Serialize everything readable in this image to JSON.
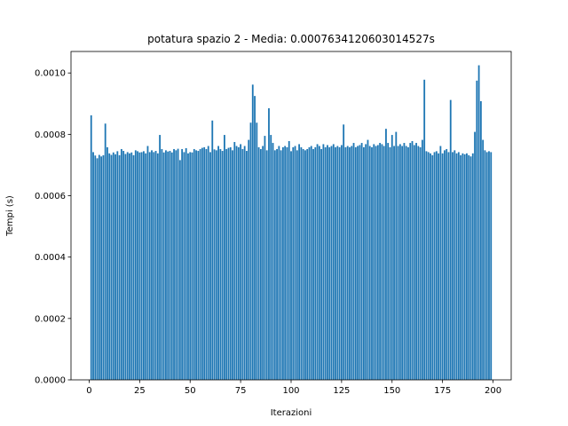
{
  "chart_data": {
    "type": "bar",
    "title": "potatura spazio 2 - Media: 0.0007634120603014527s",
    "xlabel": "Iterazioni",
    "ylabel": "Tempi (s)",
    "bar_color": "#1f77b4",
    "xlim": [
      -9,
      209
    ],
    "ylim": [
      0,
      0.00107
    ],
    "x_ticks": [
      0,
      25,
      50,
      75,
      100,
      125,
      150,
      175,
      200
    ],
    "x_tick_labels": [
      "0",
      "25",
      "50",
      "75",
      "100",
      "125",
      "150",
      "175",
      "200"
    ],
    "y_ticks": [
      0,
      0.0002,
      0.0004,
      0.0006,
      0.0008,
      0.001
    ],
    "y_tick_labels": [
      "0.0000",
      "0.0002",
      "0.0004",
      "0.0006",
      "0.0008",
      "0.0010"
    ],
    "grid": false,
    "x": [
      1,
      2,
      3,
      4,
      5,
      6,
      7,
      8,
      9,
      10,
      11,
      12,
      13,
      14,
      15,
      16,
      17,
      18,
      19,
      20,
      21,
      22,
      23,
      24,
      25,
      26,
      27,
      28,
      29,
      30,
      31,
      32,
      33,
      34,
      35,
      36,
      37,
      38,
      39,
      40,
      41,
      42,
      43,
      44,
      45,
      46,
      47,
      48,
      49,
      50,
      51,
      52,
      53,
      54,
      55,
      56,
      57,
      58,
      59,
      60,
      61,
      62,
      63,
      64,
      65,
      66,
      67,
      68,
      69,
      70,
      71,
      72,
      73,
      74,
      75,
      76,
      77,
      78,
      79,
      80,
      81,
      82,
      83,
      84,
      85,
      86,
      87,
      88,
      89,
      90,
      91,
      92,
      93,
      94,
      95,
      96,
      97,
      98,
      99,
      100,
      101,
      102,
      103,
      104,
      105,
      106,
      107,
      108,
      109,
      110,
      111,
      112,
      113,
      114,
      115,
      116,
      117,
      118,
      119,
      120,
      121,
      122,
      123,
      124,
      125,
      126,
      127,
      128,
      129,
      130,
      131,
      132,
      133,
      134,
      135,
      136,
      137,
      138,
      139,
      140,
      141,
      142,
      143,
      144,
      145,
      146,
      147,
      148,
      149,
      150,
      151,
      152,
      153,
      154,
      155,
      156,
      157,
      158,
      159,
      160,
      161,
      162,
      163,
      164,
      165,
      166,
      167,
      168,
      169,
      170,
      171,
      172,
      173,
      174,
      175,
      176,
      177,
      178,
      179,
      180,
      181,
      182,
      183,
      184,
      185,
      186,
      187,
      188,
      189,
      190,
      191,
      192,
      193,
      194,
      195,
      196,
      197,
      198,
      199
    ],
    "values": [
      0.000862,
      0.000742,
      0.000731,
      0.000722,
      0.000733,
      0.000728,
      0.000732,
      0.000835,
      0.000758,
      0.000738,
      0.000733,
      0.000741,
      0.000735,
      0.000745,
      0.000732,
      0.000752,
      0.000746,
      0.000736,
      0.000742,
      0.000738,
      0.000741,
      0.000732,
      0.000748,
      0.000745,
      0.000741,
      0.000742,
      0.000745,
      0.000738,
      0.000762,
      0.000742,
      0.000748,
      0.000742,
      0.000746,
      0.000738,
      0.000798,
      0.000752,
      0.000741,
      0.000748,
      0.000744,
      0.000746,
      0.000741,
      0.000752,
      0.000748,
      0.000753,
      0.000716,
      0.000752,
      0.000742,
      0.000755,
      0.000738,
      0.000742,
      0.000741,
      0.000752,
      0.000748,
      0.000746,
      0.000752,
      0.000756,
      0.000758,
      0.000752,
      0.000762,
      0.000742,
      0.000845,
      0.000751,
      0.000748,
      0.000762,
      0.000752,
      0.000746,
      0.000798,
      0.000752,
      0.000756,
      0.000758,
      0.000748,
      0.000775,
      0.000762,
      0.000758,
      0.000768,
      0.000752,
      0.000762,
      0.000746,
      0.000782,
      0.000838,
      0.000962,
      0.000925,
      0.000838,
      0.000758,
      0.000752,
      0.000762,
      0.000795,
      0.000748,
      0.000885,
      0.000798,
      0.000772,
      0.000748,
      0.000752,
      0.000762,
      0.000748,
      0.000758,
      0.000762,
      0.000758,
      0.000778,
      0.000745,
      0.000758,
      0.000762,
      0.000748,
      0.000768,
      0.000758,
      0.000752,
      0.000748,
      0.000752,
      0.000758,
      0.000762,
      0.000752,
      0.000758,
      0.000768,
      0.000762,
      0.000752,
      0.000768,
      0.000758,
      0.000765,
      0.000758,
      0.000762,
      0.000768,
      0.000758,
      0.000762,
      0.000758,
      0.000765,
      0.000832,
      0.000758,
      0.000762,
      0.000758,
      0.000762,
      0.000772,
      0.000758,
      0.000762,
      0.000765,
      0.000772,
      0.000758,
      0.000768,
      0.000782,
      0.000762,
      0.000758,
      0.000768,
      0.000762,
      0.000765,
      0.000772,
      0.000768,
      0.000762,
      0.000818,
      0.000772,
      0.000758,
      0.000798,
      0.000762,
      0.000808,
      0.000762,
      0.000768,
      0.000762,
      0.000772,
      0.000762,
      0.000758,
      0.000772,
      0.000778,
      0.000765,
      0.000772,
      0.000762,
      0.000758,
      0.000782,
      0.000978,
      0.000745,
      0.000742,
      0.000738,
      0.000732,
      0.000742,
      0.000745,
      0.000738,
      0.000762,
      0.000738,
      0.000748,
      0.000752,
      0.000742,
      0.000912,
      0.000742,
      0.000748,
      0.000738,
      0.000742,
      0.000732,
      0.000738,
      0.000735,
      0.000738,
      0.000732,
      0.000728,
      0.000738,
      0.000808,
      0.000975,
      0.001025,
      0.000908,
      0.000782,
      0.000748,
      0.000742,
      0.000745,
      0.000742
    ]
  }
}
